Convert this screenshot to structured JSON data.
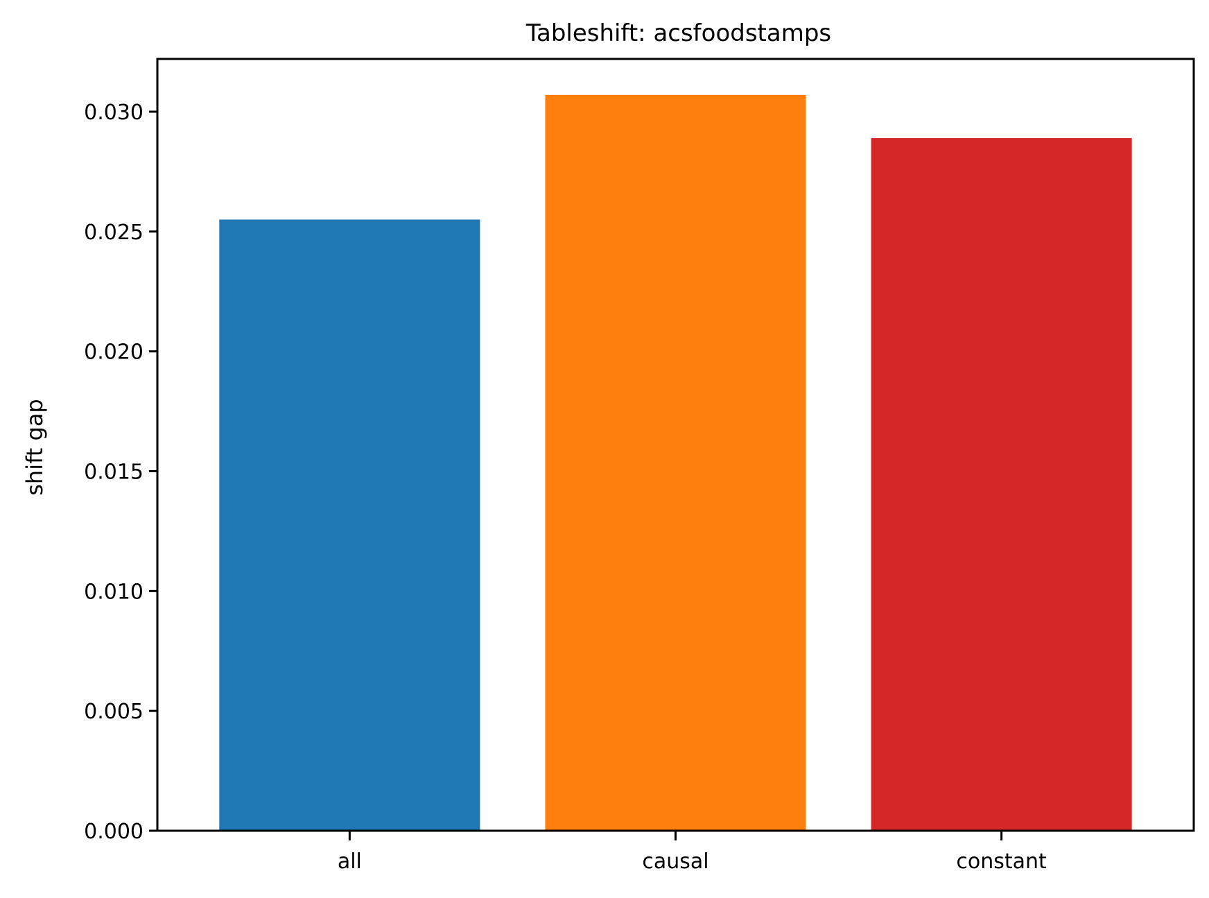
{
  "chart_data": {
    "type": "bar",
    "title": "Tableshift: acsfoodstamps",
    "xlabel": "",
    "ylabel": "shift gap",
    "categories": [
      "all",
      "causal",
      "constant"
    ],
    "values": [
      0.0255,
      0.0307,
      0.0289
    ],
    "colors": [
      "#1f77b4",
      "#ff7f0e",
      "#d62728"
    ],
    "ylim": [
      0,
      0.0322
    ],
    "yticks": [
      "0.000",
      "0.005",
      "0.010",
      "0.015",
      "0.020",
      "0.025",
      "0.030"
    ],
    "grid": false,
    "legend": "none"
  }
}
